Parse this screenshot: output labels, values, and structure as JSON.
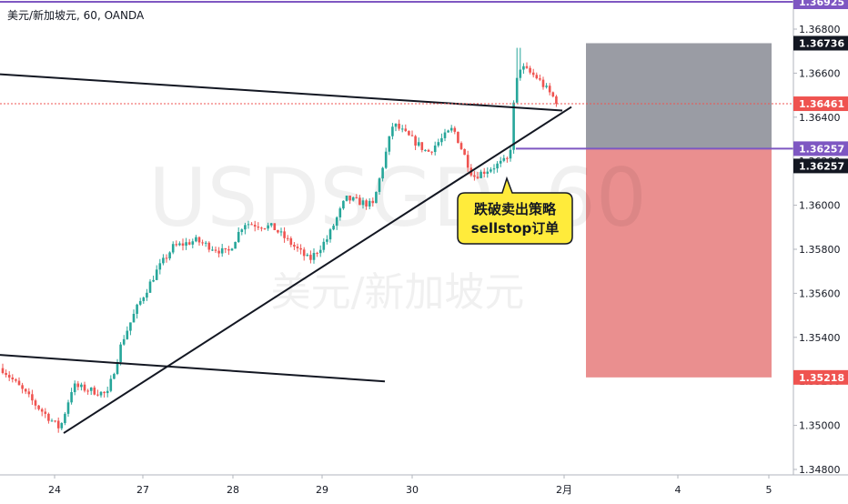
{
  "header": {
    "symbol": "美元/新加坡元",
    "interval": "60",
    "source": "OANDA",
    "separator": ", "
  },
  "watermark": {
    "ticker": "USDSGD, 60",
    "name": "美元/新加坡元"
  },
  "callout": {
    "line1": "跌破卖出策略",
    "line2": "sellstop订单"
  },
  "price_tags": {
    "top_line": "1.36925",
    "target": "1.36736",
    "current": "1.36461",
    "entry_line": "1.36257",
    "entry": "1.36257",
    "stop": "1.35218"
  },
  "colors": {
    "up_candle": "#26a69a",
    "down_candle": "#ef5350",
    "target_zone": "#787b86",
    "stop_zone": "#e57373",
    "purple_line": "#7e57c2",
    "callout_fill": "#ffeb3b",
    "current_tag": "#ef5350",
    "dark_tag": "#131722"
  },
  "chart_data": {
    "type": "candlestick",
    "title": "",
    "yaxis": {
      "ticks": [
        "1.34800",
        "1.35000",
        "1.35200",
        "1.35400",
        "1.35600",
        "1.35800",
        "1.36000",
        "1.36200",
        "1.36400",
        "1.36600",
        "1.36800"
      ],
      "range": [
        1.3475,
        1.3695
      ]
    },
    "xaxis": {
      "ticks": [
        "24",
        "27",
        "28",
        "29",
        "30",
        "2月",
        "4",
        "5"
      ]
    },
    "anchors": {
      "start": 1.3526,
      "low": 1.34965,
      "high": 1.36715,
      "end": 1.36461
    },
    "lines": [
      {
        "name": "upper-resistance",
        "from_price": 1.36595,
        "to_price": 1.3643
      },
      {
        "name": "rising-support",
        "from_price": 1.34965,
        "to_price": 1.3643
      },
      {
        "name": "lower-line",
        "from_price": 1.3532,
        "to_price": 1.352
      }
    ],
    "horizontal_levels": [
      1.36925,
      1.36257
    ],
    "position": {
      "side": "short",
      "entry": 1.36257,
      "target": 1.36736,
      "stop": 1.35218
    },
    "grid": false
  }
}
